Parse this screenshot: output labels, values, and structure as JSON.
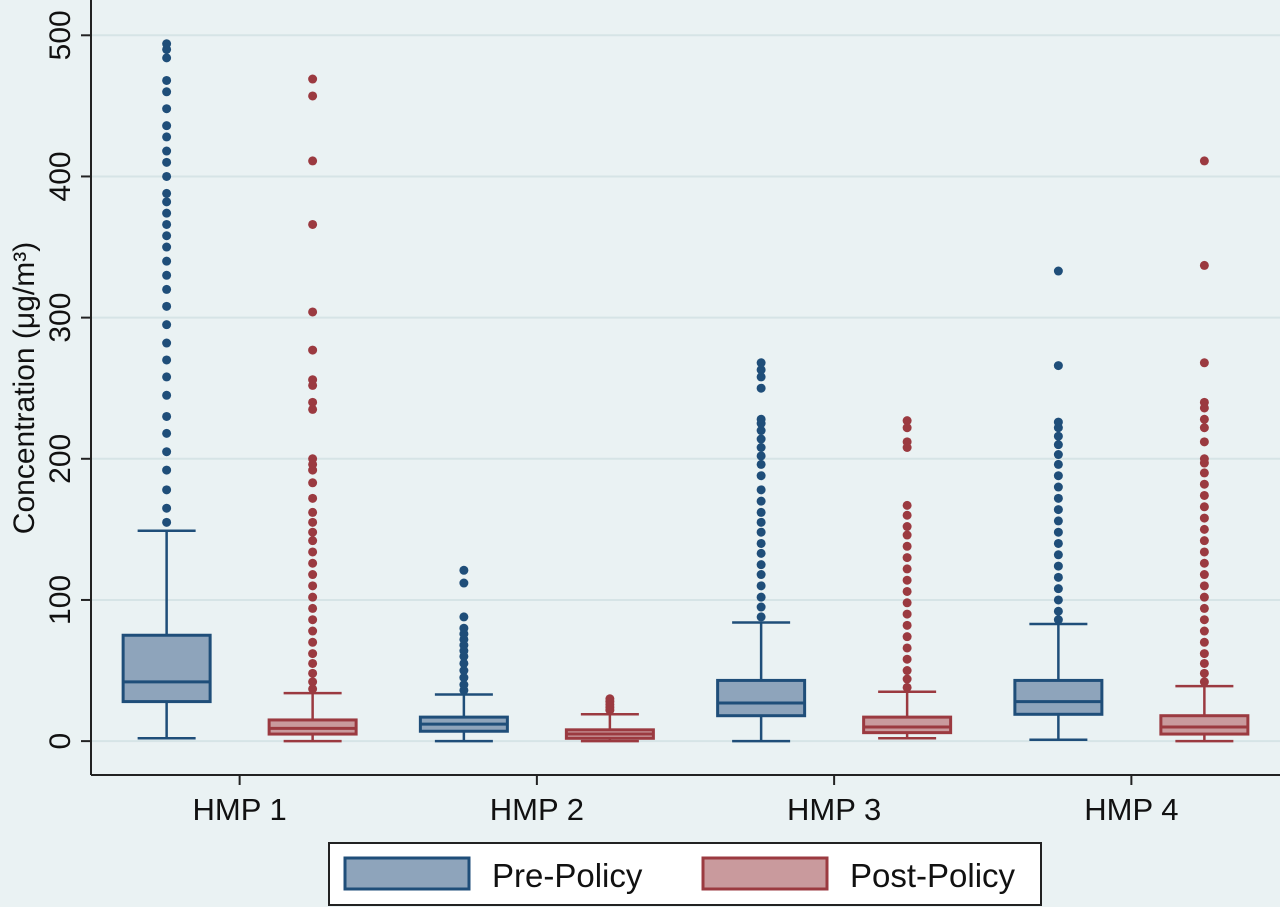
{
  "chart_data": {
    "type": "boxplot",
    "ylabel": "Concentration (μg/m³)",
    "ylim": [
      -24,
      525
    ],
    "yticks": [
      0,
      100,
      200,
      300,
      400,
      500
    ],
    "grid": true,
    "legend_position": "bottom",
    "categories": [
      "HMP 1",
      "HMP 2",
      "HMP 3",
      "HMP 4"
    ],
    "series": [
      {
        "name": "Pre-Policy",
        "color": "#8ea4bb",
        "edge_color": "#1f4e79",
        "boxes": [
          {
            "whisker_low": 2,
            "q1": 28,
            "median": 42,
            "q3": 75,
            "whisker_high": 149,
            "outliers": [
              155,
              165,
              178,
              192,
              205,
              218,
              230,
              245,
              258,
              270,
              282,
              295,
              308,
              320,
              330,
              340,
              350,
              358,
              366,
              374,
              382,
              388,
              400,
              410,
              418,
              428,
              436,
              448,
              460,
              468,
              484,
              490,
              494
            ]
          },
          {
            "whisker_low": 0,
            "q1": 7,
            "median": 12,
            "q3": 17,
            "whisker_high": 33,
            "outliers": [
              36,
              40,
              45,
              50,
              55,
              60,
              64,
              68,
              72,
              76,
              80,
              88,
              112,
              121
            ]
          },
          {
            "whisker_low": 0,
            "q1": 18,
            "median": 27,
            "q3": 43,
            "whisker_high": 84,
            "outliers": [
              88,
              95,
              102,
              110,
              118,
              125,
              133,
              140,
              148,
              155,
              162,
              170,
              178,
              188,
              196,
              202,
              208,
              214,
              220,
              225,
              228,
              250,
              258,
              263,
              268
            ]
          },
          {
            "whisker_low": 1,
            "q1": 19,
            "median": 28,
            "q3": 43,
            "whisker_high": 83,
            "outliers": [
              86,
              92,
              100,
              108,
              116,
              124,
              132,
              140,
              148,
              156,
              164,
              172,
              180,
              188,
              196,
              203,
              210,
              216,
              222,
              226,
              266,
              333
            ]
          }
        ]
      },
      {
        "name": "Post-Policy",
        "color": "#c99a9d",
        "edge_color": "#9b3a40",
        "boxes": [
          {
            "whisker_low": 0,
            "q1": 5,
            "median": 9,
            "q3": 15,
            "whisker_high": 34,
            "outliers": [
              37,
              42,
              48,
              55,
              62,
              70,
              78,
              86,
              94,
              102,
              110,
              118,
              126,
              134,
              142,
              148,
              155,
              162,
              172,
              183,
              192,
              196,
              200,
              235,
              240,
              252,
              256,
              277,
              304,
              366,
              411,
              457,
              469
            ]
          },
          {
            "whisker_low": 0,
            "q1": 2,
            "median": 5,
            "q3": 8,
            "whisker_high": 19,
            "outliers": [
              22,
              24,
              26,
              28,
              30
            ]
          },
          {
            "whisker_low": 2,
            "q1": 6,
            "median": 10,
            "q3": 17,
            "whisker_high": 35,
            "outliers": [
              38,
              44,
              50,
              58,
              66,
              74,
              82,
              90,
              98,
              106,
              114,
              122,
              130,
              138,
              146,
              152,
              160,
              167,
              208,
              212,
              222,
              227
            ]
          },
          {
            "whisker_low": 0,
            "q1": 5,
            "median": 10,
            "q3": 18,
            "whisker_high": 39,
            "outliers": [
              42,
              48,
              55,
              62,
              70,
              78,
              86,
              94,
              102,
              110,
              118,
              126,
              134,
              142,
              150,
              158,
              166,
              174,
              182,
              190,
              197,
              200,
              212,
              222,
              228,
              236,
              240,
              268,
              337,
              411
            ]
          }
        ]
      }
    ]
  }
}
